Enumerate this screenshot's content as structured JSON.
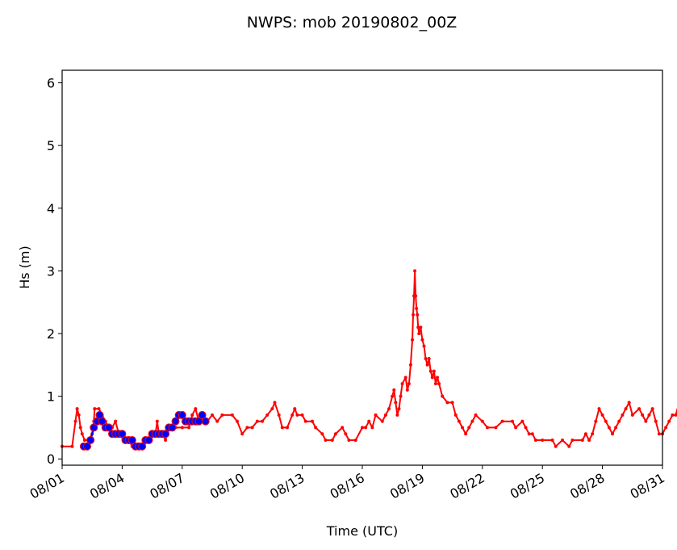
{
  "chart_data": {
    "type": "line",
    "title": "NWPS: mob 20190802_00Z",
    "xlabel": "Time (UTC)",
    "ylabel": "Hs (m)",
    "xlim": [
      "2019-08-01",
      "2019-08-31"
    ],
    "ylim": [
      -0.1,
      6.2
    ],
    "yticks": [
      0,
      1,
      2,
      3,
      4,
      5,
      6
    ],
    "xticks": [
      "2019-08-01",
      "2019-08-04",
      "2019-08-07",
      "2019-08-10",
      "2019-08-13",
      "2019-08-16",
      "2019-08-19",
      "2019-08-22",
      "2019-08-25",
      "2019-08-28",
      "2019-08-31"
    ],
    "xtick_labels": [
      "08/01",
      "08/04",
      "08/07",
      "08/10",
      "08/13",
      "08/16",
      "08/19",
      "08/22",
      "08/25",
      "08/28",
      "08/31"
    ],
    "grid": false,
    "series": [
      {
        "color": "#ff0000",
        "marker": "dot",
        "points": [
          [
            "2019-08-01",
            0.2
          ],
          [
            "2019-08-01 12:00",
            0.2
          ],
          [
            "2019-08-01 16:00",
            0.6
          ],
          [
            "2019-08-01 18:00",
            0.8
          ],
          [
            "2019-08-01 20:00",
            0.7
          ],
          [
            "2019-08-01 22:00",
            0.5
          ],
          [
            "2019-08-02",
            0.4
          ],
          [
            "2019-08-02 03:00",
            0.3
          ],
          [
            "2019-08-02 08:00",
            0.3
          ],
          [
            "2019-08-02 12:00",
            0.4
          ],
          [
            "2019-08-02 14:00",
            0.6
          ],
          [
            "2019-08-02 15:00",
            0.8
          ],
          [
            "2019-08-02 20:00",
            0.8
          ],
          [
            "2019-08-03",
            0.7
          ],
          [
            "2019-08-03 04:00",
            0.6
          ],
          [
            "2019-08-03 08:00",
            0.5
          ],
          [
            "2019-08-03 12:00",
            0.5
          ],
          [
            "2019-08-03 16:00",
            0.6
          ],
          [
            "2019-08-03 20:00",
            0.4
          ],
          [
            "2019-08-04 02:00",
            0.3
          ],
          [
            "2019-08-04 08:00",
            0.3
          ],
          [
            "2019-08-04 12:00",
            0.2
          ],
          [
            "2019-08-05",
            0.2
          ],
          [
            "2019-08-05 08:00",
            0.3
          ],
          [
            "2019-08-05 16:00",
            0.4
          ],
          [
            "2019-08-05 18:00",
            0.6
          ],
          [
            "2019-08-05 20:00",
            0.4
          ],
          [
            "2019-08-06",
            0.4
          ],
          [
            "2019-08-06 04:00",
            0.3
          ],
          [
            "2019-08-06 08:00",
            0.5
          ],
          [
            "2019-08-06 16:00",
            0.5
          ],
          [
            "2019-08-07",
            0.5
          ],
          [
            "2019-08-07 08:00",
            0.5
          ],
          [
            "2019-08-07 12:00",
            0.7
          ],
          [
            "2019-08-07 16:00",
            0.8
          ],
          [
            "2019-08-07 20:00",
            0.6
          ],
          [
            "2019-08-08",
            0.7
          ],
          [
            "2019-08-08 06:00",
            0.6
          ],
          [
            "2019-08-08 12:00",
            0.7
          ],
          [
            "2019-08-08 18:00",
            0.6
          ],
          [
            "2019-08-09",
            0.7
          ],
          [
            "2019-08-09 12:00",
            0.7
          ],
          [
            "2019-08-09 18:00",
            0.6
          ],
          [
            "2019-08-10",
            0.4
          ],
          [
            "2019-08-10 06:00",
            0.5
          ],
          [
            "2019-08-10 12:00",
            0.5
          ],
          [
            "2019-08-10 18:00",
            0.6
          ],
          [
            "2019-08-11",
            0.6
          ],
          [
            "2019-08-11 06:00",
            0.7
          ],
          [
            "2019-08-11 12:00",
            0.8
          ],
          [
            "2019-08-11 15:00",
            0.9
          ],
          [
            "2019-08-11 20:00",
            0.7
          ],
          [
            "2019-08-12",
            0.5
          ],
          [
            "2019-08-12 06:00",
            0.5
          ],
          [
            "2019-08-12 12:00",
            0.7
          ],
          [
            "2019-08-12 15:00",
            0.8
          ],
          [
            "2019-08-12 18:00",
            0.7
          ],
          [
            "2019-08-13",
            0.7
          ],
          [
            "2019-08-13 04:00",
            0.6
          ],
          [
            "2019-08-13 12:00",
            0.6
          ],
          [
            "2019-08-13 16:00",
            0.5
          ],
          [
            "2019-08-14",
            0.4
          ],
          [
            "2019-08-14 04:00",
            0.3
          ],
          [
            "2019-08-14 12:00",
            0.3
          ],
          [
            "2019-08-14 16:00",
            0.4
          ],
          [
            "2019-08-15",
            0.5
          ],
          [
            "2019-08-15 04:00",
            0.4
          ],
          [
            "2019-08-15 08:00",
            0.3
          ],
          [
            "2019-08-15 16:00",
            0.3
          ],
          [
            "2019-08-16",
            0.5
          ],
          [
            "2019-08-16 04:00",
            0.5
          ],
          [
            "2019-08-16 08:00",
            0.6
          ],
          [
            "2019-08-16 12:00",
            0.5
          ],
          [
            "2019-08-16 16:00",
            0.7
          ],
          [
            "2019-08-17",
            0.6
          ],
          [
            "2019-08-17 04:00",
            0.7
          ],
          [
            "2019-08-17 08:00",
            0.8
          ],
          [
            "2019-08-17 12:00",
            1.0
          ],
          [
            "2019-08-17 14:00",
            1.1
          ],
          [
            "2019-08-17 16:00",
            0.9
          ],
          [
            "2019-08-17 18:00",
            0.7
          ],
          [
            "2019-08-17 20:00",
            0.8
          ],
          [
            "2019-08-17 22:00",
            1.0
          ],
          [
            "2019-08-18",
            1.2
          ],
          [
            "2019-08-18 04:00",
            1.3
          ],
          [
            "2019-08-18 06:00",
            1.1
          ],
          [
            "2019-08-18 08:00",
            1.2
          ],
          [
            "2019-08-18 10:00",
            1.5
          ],
          [
            "2019-08-18 12:00",
            1.9
          ],
          [
            "2019-08-18 13:00",
            2.3
          ],
          [
            "2019-08-18 14:00",
            2.6
          ],
          [
            "2019-08-18 15:00",
            3.0
          ],
          [
            "2019-08-18 16:00",
            2.6
          ],
          [
            "2019-08-18 17:00",
            2.4
          ],
          [
            "2019-08-18 18:00",
            2.3
          ],
          [
            "2019-08-18 19:00",
            2.1
          ],
          [
            "2019-08-18 20:00",
            2.0
          ],
          [
            "2019-08-18 22:00",
            2.1
          ],
          [
            "2019-08-19",
            1.9
          ],
          [
            "2019-08-19 02:00",
            1.8
          ],
          [
            "2019-08-19 04:00",
            1.6
          ],
          [
            "2019-08-19 06:00",
            1.5
          ],
          [
            "2019-08-19 08:00",
            1.6
          ],
          [
            "2019-08-19 10:00",
            1.4
          ],
          [
            "2019-08-19 12:00",
            1.3
          ],
          [
            "2019-08-19 14:00",
            1.4
          ],
          [
            "2019-08-19 16:00",
            1.2
          ],
          [
            "2019-08-19 18:00",
            1.3
          ],
          [
            "2019-08-19 20:00",
            1.2
          ],
          [
            "2019-08-20",
            1.0
          ],
          [
            "2019-08-20 06:00",
            0.9
          ],
          [
            "2019-08-20 12:00",
            0.9
          ],
          [
            "2019-08-20 16:00",
            0.7
          ],
          [
            "2019-08-20 20:00",
            0.6
          ],
          [
            "2019-08-21",
            0.5
          ],
          [
            "2019-08-21 04:00",
            0.4
          ],
          [
            "2019-08-21 08:00",
            0.5
          ],
          [
            "2019-08-21 12:00",
            0.6
          ],
          [
            "2019-08-21 16:00",
            0.7
          ],
          [
            "2019-08-22",
            0.6
          ],
          [
            "2019-08-22 06:00",
            0.5
          ],
          [
            "2019-08-22 16:00",
            0.5
          ],
          [
            "2019-08-23",
            0.6
          ],
          [
            "2019-08-23 12:00",
            0.6
          ],
          [
            "2019-08-23 16:00",
            0.5
          ],
          [
            "2019-08-24",
            0.6
          ],
          [
            "2019-08-24 04:00",
            0.5
          ],
          [
            "2019-08-24 08:00",
            0.4
          ],
          [
            "2019-08-24 12:00",
            0.4
          ],
          [
            "2019-08-24 16:00",
            0.3
          ],
          [
            "2019-08-25",
            0.3
          ],
          [
            "2019-08-25 12:00",
            0.3
          ],
          [
            "2019-08-25 16:00",
            0.2
          ],
          [
            "2019-08-26",
            0.3
          ],
          [
            "2019-08-26 08:00",
            0.2
          ],
          [
            "2019-08-26 12:00",
            0.3
          ],
          [
            "2019-08-27",
            0.3
          ],
          [
            "2019-08-27 04:00",
            0.4
          ],
          [
            "2019-08-27 08:00",
            0.3
          ],
          [
            "2019-08-27 12:00",
            0.4
          ],
          [
            "2019-08-27 16:00",
            0.6
          ],
          [
            "2019-08-27 20:00",
            0.8
          ],
          [
            "2019-08-28",
            0.7
          ],
          [
            "2019-08-28 04:00",
            0.6
          ],
          [
            "2019-08-28 08:00",
            0.5
          ],
          [
            "2019-08-28 12:00",
            0.4
          ],
          [
            "2019-08-28 16:00",
            0.5
          ],
          [
            "2019-08-28 20:00",
            0.6
          ],
          [
            "2019-08-29",
            0.7
          ],
          [
            "2019-08-29 04:00",
            0.8
          ],
          [
            "2019-08-29 08:00",
            0.9
          ],
          [
            "2019-08-29 12:00",
            0.7
          ],
          [
            "2019-08-29 20:00",
            0.8
          ],
          [
            "2019-08-30",
            0.7
          ],
          [
            "2019-08-30 04:00",
            0.6
          ],
          [
            "2019-08-30 08:00",
            0.7
          ],
          [
            "2019-08-30 12:00",
            0.8
          ],
          [
            "2019-08-30 16:00",
            0.6
          ],
          [
            "2019-08-30 20:00",
            0.4
          ],
          [
            "2019-08-31",
            0.4
          ],
          [
            "2019-08-31 04:00",
            0.5
          ],
          [
            "2019-08-31 08:00",
            0.6
          ],
          [
            "2019-08-31 12:00",
            0.7
          ],
          [
            "2019-08-31 16:00",
            0.7
          ],
          [
            "2019-08-31 20:00",
            0.9
          ]
        ]
      },
      {
        "color": "#0000ff",
        "marker": "circle",
        "points": [
          [
            "2019-08-02 02:00",
            0.2
          ],
          [
            "2019-08-02 06:00",
            0.2
          ],
          [
            "2019-08-02 10:00",
            0.3
          ],
          [
            "2019-08-02 14:00",
            0.5
          ],
          [
            "2019-08-02 18:00",
            0.6
          ],
          [
            "2019-08-02 21:00",
            0.7
          ],
          [
            "2019-08-03",
            0.6
          ],
          [
            "2019-08-03 04:00",
            0.5
          ],
          [
            "2019-08-03 08:00",
            0.5
          ],
          [
            "2019-08-03 12:00",
            0.4
          ],
          [
            "2019-08-03 16:00",
            0.4
          ],
          [
            "2019-08-03 20:00",
            0.4
          ],
          [
            "2019-08-04",
            0.4
          ],
          [
            "2019-08-04 04:00",
            0.3
          ],
          [
            "2019-08-04 08:00",
            0.3
          ],
          [
            "2019-08-04 12:00",
            0.3
          ],
          [
            "2019-08-04 16:00",
            0.2
          ],
          [
            "2019-08-04 20:00",
            0.2
          ],
          [
            "2019-08-05",
            0.2
          ],
          [
            "2019-08-05 04:00",
            0.3
          ],
          [
            "2019-08-05 08:00",
            0.3
          ],
          [
            "2019-08-05 12:00",
            0.4
          ],
          [
            "2019-08-05 16:00",
            0.4
          ],
          [
            "2019-08-05 20:00",
            0.4
          ],
          [
            "2019-08-06",
            0.4
          ],
          [
            "2019-08-06 04:00",
            0.4
          ],
          [
            "2019-08-06 08:00",
            0.5
          ],
          [
            "2019-08-06 12:00",
            0.5
          ],
          [
            "2019-08-06 16:00",
            0.6
          ],
          [
            "2019-08-06 20:00",
            0.7
          ],
          [
            "2019-08-07",
            0.7
          ],
          [
            "2019-08-07 04:00",
            0.6
          ],
          [
            "2019-08-07 08:00",
            0.6
          ],
          [
            "2019-08-07 12:00",
            0.6
          ],
          [
            "2019-08-07 16:00",
            0.6
          ],
          [
            "2019-08-07 20:00",
            0.6
          ],
          [
            "2019-08-08",
            0.7
          ],
          [
            "2019-08-08 04:00",
            0.6
          ]
        ]
      }
    ]
  }
}
